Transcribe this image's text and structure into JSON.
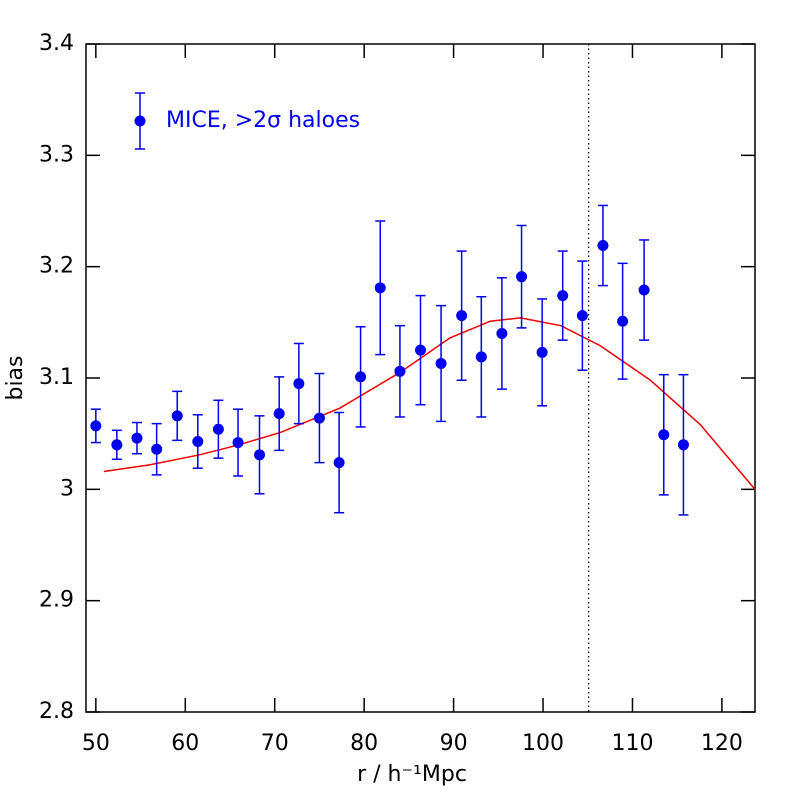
{
  "chart_data": {
    "type": "scatter",
    "xlabel": "r / h⁻¹Mpc",
    "ylabel": "bias",
    "xlim": [
      48.9,
      123.7
    ],
    "ylim": [
      2.8,
      3.4
    ],
    "xticks": [
      50,
      60,
      70,
      80,
      90,
      100,
      110,
      120
    ],
    "yticks": [
      2.8,
      2.9,
      3,
      3.1,
      3.2,
      3.3,
      3.4
    ],
    "legend": "upper left",
    "series": [
      {
        "name": "MICE, >2σ haloes",
        "color": "#0000ee",
        "x": [
          50.0,
          52.35,
          54.6,
          56.8,
          59.1,
          61.4,
          63.7,
          65.9,
          68.3,
          70.5,
          72.7,
          75.0,
          77.2,
          79.6,
          81.8,
          84.0,
          86.3,
          88.6,
          90.9,
          93.1,
          95.4,
          97.6,
          99.9,
          102.2,
          104.4,
          106.7,
          108.9,
          111.3,
          113.5,
          115.7
        ],
        "values": [
          3.057,
          3.04,
          3.046,
          3.036,
          3.066,
          3.043,
          3.054,
          3.042,
          3.031,
          3.068,
          3.095,
          3.064,
          3.024,
          3.101,
          3.181,
          3.106,
          3.125,
          3.113,
          3.156,
          3.119,
          3.14,
          3.191,
          3.123,
          3.174,
          3.156,
          3.219,
          3.151,
          3.179,
          3.049,
          3.04
        ],
        "errors": [
          0.015,
          0.013,
          0.014,
          0.023,
          0.022,
          0.024,
          0.026,
          0.03,
          0.035,
          0.033,
          0.036,
          0.04,
          0.045,
          0.045,
          0.06,
          0.041,
          0.049,
          0.052,
          0.058,
          0.054,
          0.05,
          0.046,
          0.048,
          0.04,
          0.049,
          0.036,
          0.052,
          0.045,
          0.054,
          0.063
        ]
      }
    ],
    "model": {
      "color": "#ee0000",
      "x": [
        50.9,
        56.0,
        61.6,
        66.0,
        70.6,
        77.3,
        84.0,
        89.6,
        94.1,
        97.5,
        102.0,
        106.4,
        112.0,
        117.6,
        123.7
      ],
      "values": [
        3.016,
        3.022,
        3.031,
        3.04,
        3.051,
        3.073,
        3.105,
        3.136,
        3.151,
        3.154,
        3.147,
        3.129,
        3.098,
        3.058,
        3.0
      ]
    },
    "vline": {
      "x": 105.1,
      "style": "dotted"
    }
  }
}
